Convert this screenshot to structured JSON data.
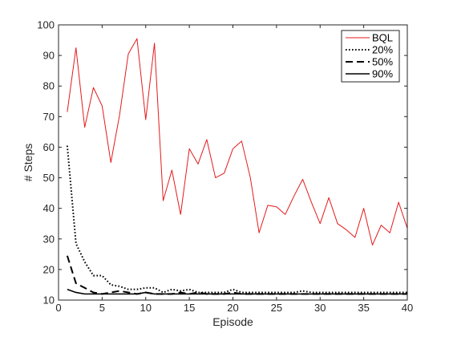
{
  "chart_data": {
    "type": "line",
    "title": "",
    "xlabel": "Episode",
    "ylabel": "# Steps",
    "xlim": [
      0,
      40
    ],
    "ylim": [
      10,
      100
    ],
    "xticks": [
      0,
      5,
      10,
      15,
      20,
      25,
      30,
      35,
      40
    ],
    "yticks": [
      10,
      20,
      30,
      40,
      50,
      60,
      70,
      80,
      90,
      100
    ],
    "grid": false,
    "legend_position": "top-right",
    "x": [
      1,
      2,
      3,
      4,
      5,
      6,
      7,
      8,
      9,
      10,
      11,
      12,
      13,
      14,
      15,
      16,
      17,
      18,
      19,
      20,
      21,
      22,
      23,
      24,
      25,
      26,
      27,
      28,
      29,
      30,
      31,
      32,
      33,
      34,
      35,
      36,
      37,
      38,
      39,
      40
    ],
    "series": [
      {
        "name": "BQL",
        "color": "#e41a1c",
        "style": "solid",
        "values": [
          71.5,
          92.5,
          66.5,
          79.5,
          73.5,
          55,
          70.5,
          90.5,
          95.5,
          69,
          94,
          42.5,
          52.5,
          38,
          59.5,
          54.5,
          62.5,
          50,
          51.5,
          59.5,
          62,
          50,
          32,
          41,
          40.5,
          38,
          44,
          49.5,
          42,
          35,
          43.5,
          35,
          33,
          30.5,
          40,
          28,
          34.5,
          32,
          42,
          33.5
        ]
      },
      {
        "name": "20%",
        "color": "#000000",
        "style": "dotted",
        "values": [
          60.5,
          28.5,
          22.5,
          18,
          18,
          15,
          14.5,
          13.5,
          13.5,
          14,
          14,
          12.5,
          13.5,
          13,
          13.5,
          12.5,
          12.5,
          12.5,
          12.5,
          13.5,
          12.5,
          12.5,
          12.5,
          12.5,
          12.5,
          12.5,
          12.5,
          13,
          12.5,
          12.5,
          12.5,
          12.5,
          12.5,
          12.5,
          12.5,
          12.5,
          12.5,
          12.5,
          12.5,
          12.5
        ]
      },
      {
        "name": "50%",
        "color": "#000000",
        "style": "dashed",
        "values": [
          24.5,
          15.5,
          14,
          12.5,
          12,
          12.5,
          13,
          12.5,
          12,
          12.5,
          12,
          12,
          12,
          12.5,
          12,
          12.5,
          12,
          12,
          12,
          12.5,
          12,
          12,
          12,
          12,
          12,
          12,
          12,
          12,
          12,
          12,
          12,
          12,
          12,
          12,
          12,
          12,
          12,
          12,
          12,
          12
        ]
      },
      {
        "name": "90%",
        "color": "#000000",
        "style": "solid",
        "values": [
          13.5,
          12.5,
          12,
          12,
          12,
          12,
          12,
          12,
          12,
          12.5,
          12,
          12,
          12,
          12,
          12,
          12,
          12,
          12,
          12,
          12,
          12,
          12,
          12,
          12,
          12,
          12,
          12,
          12,
          12,
          12,
          12,
          12,
          12,
          12,
          12,
          12,
          12,
          12,
          12,
          12
        ]
      }
    ]
  }
}
